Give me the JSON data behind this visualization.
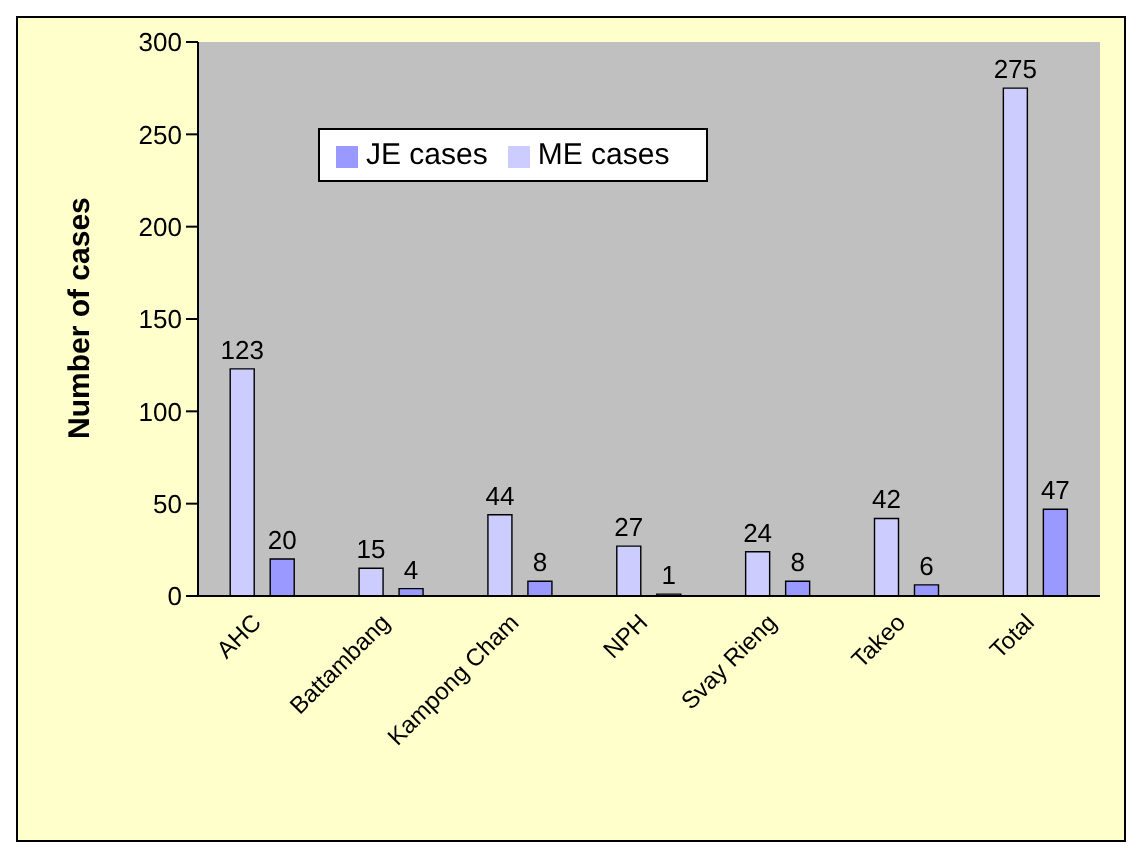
{
  "chart_data": {
    "type": "bar",
    "ylabel": "Number of cases",
    "categories": [
      "AHC",
      "Battambang",
      "Kampong Cham",
      "NPH",
      "Svay Rieng",
      "Takeo",
      "Total"
    ],
    "series": [
      {
        "name": "ME cases",
        "color": "#ccccff",
        "values": [
          123,
          15,
          44,
          27,
          24,
          42,
          275
        ]
      },
      {
        "name": "JE cases",
        "color": "#9999ff",
        "values": [
          20,
          4,
          8,
          1,
          8,
          6,
          47
        ]
      }
    ],
    "ylim": [
      0,
      300
    ],
    "yticks": [
      0,
      50,
      100,
      150,
      200,
      250,
      300
    ],
    "data_labels": true,
    "legend": "top left",
    "grid": false
  }
}
